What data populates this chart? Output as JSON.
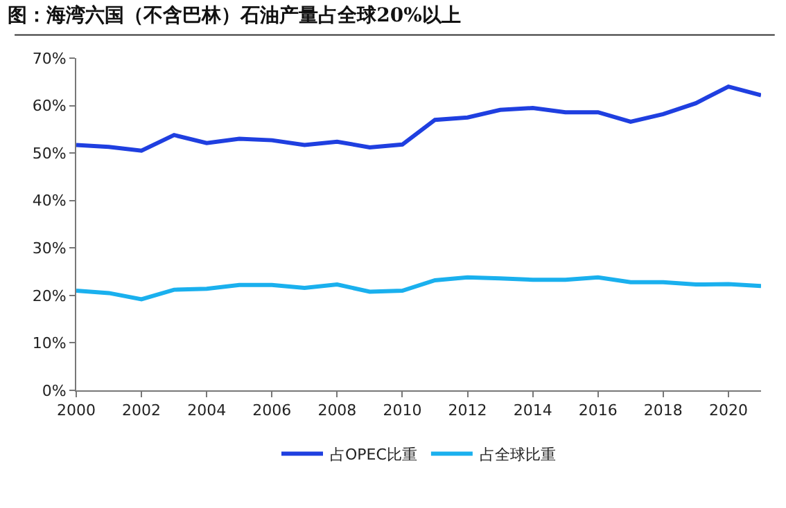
{
  "chart_data": {
    "type": "line",
    "title": "图：海湾六国（不含巴林）石油产量占全球20%以上",
    "x": [
      2000,
      2001,
      2002,
      2003,
      2004,
      2005,
      2006,
      2007,
      2008,
      2009,
      2010,
      2011,
      2012,
      2013,
      2014,
      2015,
      2016,
      2017,
      2018,
      2019,
      2020,
      2021
    ],
    "series": [
      {
        "name": "占OPEC比重",
        "color": "#1f3fe0",
        "values": [
          51.7,
          51.3,
          50.5,
          53.8,
          52.1,
          53.0,
          52.7,
          51.7,
          52.4,
          51.2,
          51.8,
          57.0,
          57.5,
          59.1,
          59.5,
          58.6,
          58.6,
          56.6,
          58.2,
          60.5,
          64.0,
          62.2
        ]
      },
      {
        "name": "占全球比重",
        "color": "#1ab0ee",
        "values": [
          21.0,
          20.5,
          19.2,
          21.2,
          21.4,
          22.2,
          22.2,
          21.6,
          22.3,
          20.8,
          21.0,
          23.2,
          23.8,
          23.6,
          23.3,
          23.3,
          23.8,
          22.8,
          22.8,
          22.3,
          22.4,
          22.0
        ]
      }
    ],
    "xlim": [
      2000,
      2021
    ],
    "xticks": [
      2000,
      2002,
      2004,
      2006,
      2008,
      2010,
      2012,
      2014,
      2016,
      2018,
      2020
    ],
    "ylim": [
      0,
      70
    ],
    "yticks": [
      {
        "value": 0,
        "label": "0%"
      },
      {
        "value": 10,
        "label": "10%"
      },
      {
        "value": 20,
        "label": "20%"
      },
      {
        "value": 30,
        "label": "30%"
      },
      {
        "value": 40,
        "label": "40%"
      },
      {
        "value": 50,
        "label": "50%"
      },
      {
        "value": 60,
        "label": "60%"
      },
      {
        "value": 70,
        "label": "70%"
      }
    ],
    "grid": false,
    "legend": "bottom",
    "marker": "none",
    "line_style": "solid"
  }
}
